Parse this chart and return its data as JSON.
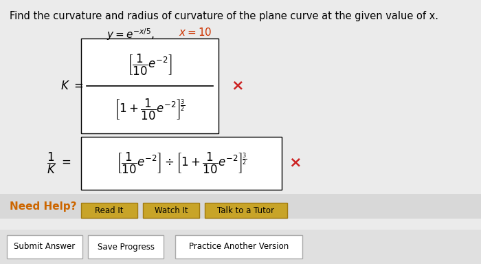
{
  "background_color": "#ebebeb",
  "title_text": "Find the curvature and radius of curvature of the plane curve at the given value of x.",
  "need_help_color": "#cc6600",
  "button_bg": "#c8a428",
  "button_border": "#a07a10",
  "box_bg": "#ffffff",
  "x_mark_color": "#cc2222",
  "font_size_title": 10.5,
  "subtitle_black": "y = e^{-x/5},",
  "subtitle_red": "x = 10",
  "K_num": "$\\left[\\dfrac{1}{10}e^{-2}\\right]$",
  "K_den": "$\\left[1 + \\dfrac{1}{10}e^{-2}\\right]^{\\!\\frac{3}{2}}$",
  "invK_expr": "$\\left[\\dfrac{1}{10}e^{-2}\\right] \\div \\left[1 + \\dfrac{1}{10}e^{-2}\\right]^{\\!\\frac{3}{2}}$"
}
